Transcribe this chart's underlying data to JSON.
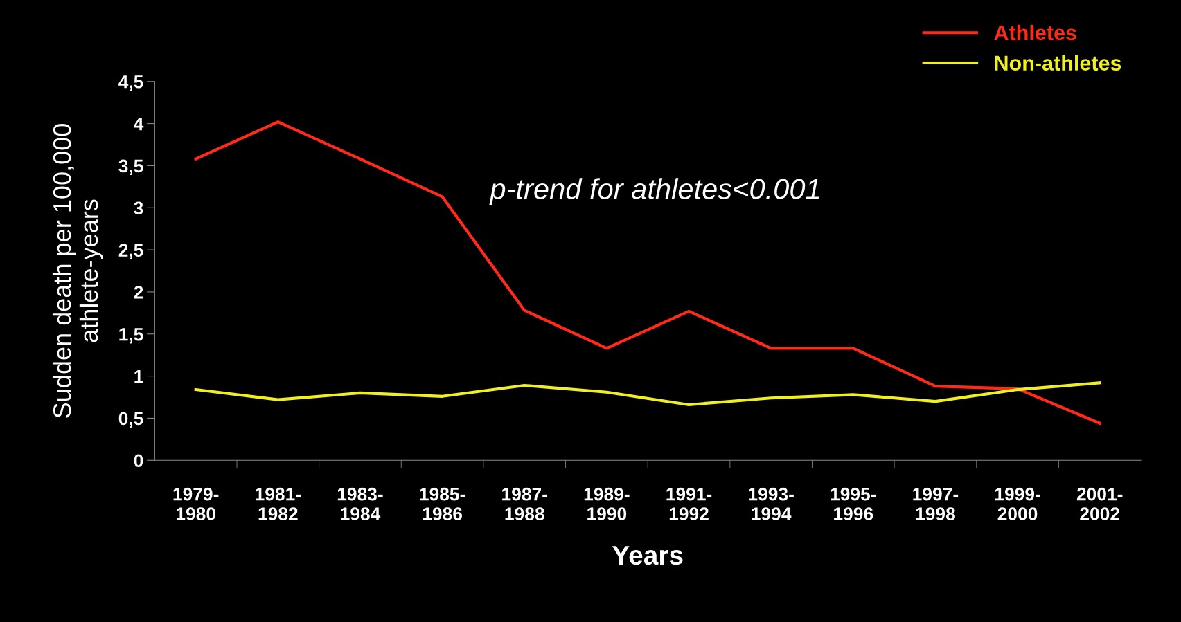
{
  "chart_data": {
    "type": "line",
    "xlabel": "Years",
    "ylabel": "Sudden death per 100,000\nathlete-years",
    "categories": [
      "1979-\n1980",
      "1981-\n1982",
      "1983-\n1984",
      "1985-\n1986",
      "1987-\n1988",
      "1989-\n1990",
      "1991-\n1992",
      "1993-\n1994",
      "1995-\n1996",
      "1997-\n1998",
      "1999-\n2000",
      "2001-\n2002"
    ],
    "series": [
      {
        "name": "Athletes",
        "color": "#ff2a1a",
        "values": [
          3.58,
          4.02,
          3.58,
          3.13,
          1.78,
          1.33,
          1.77,
          1.33,
          1.33,
          0.88,
          0.85,
          0.44
        ]
      },
      {
        "name": "Non-athletes",
        "color": "#f0f020",
        "values": [
          0.84,
          0.72,
          0.8,
          0.76,
          0.89,
          0.81,
          0.66,
          0.74,
          0.78,
          0.7,
          0.84,
          0.92
        ]
      }
    ],
    "ylim": [
      0,
      4.5
    ],
    "yticks": [
      0,
      {
        "value": 0.5,
        "label": "0,5"
      },
      1,
      {
        "value": 1.5,
        "label": "1,5"
      },
      2,
      {
        "value": 2.5,
        "label": "2,5"
      },
      3,
      {
        "value": 3.5,
        "label": "3,5"
      },
      4,
      {
        "value": 4.5,
        "label": "4,5"
      }
    ],
    "annotations": [
      "p-trend for athletes<0.001"
    ],
    "legend": "top right",
    "grid": false,
    "marker": "none",
    "line_style": "solid"
  }
}
